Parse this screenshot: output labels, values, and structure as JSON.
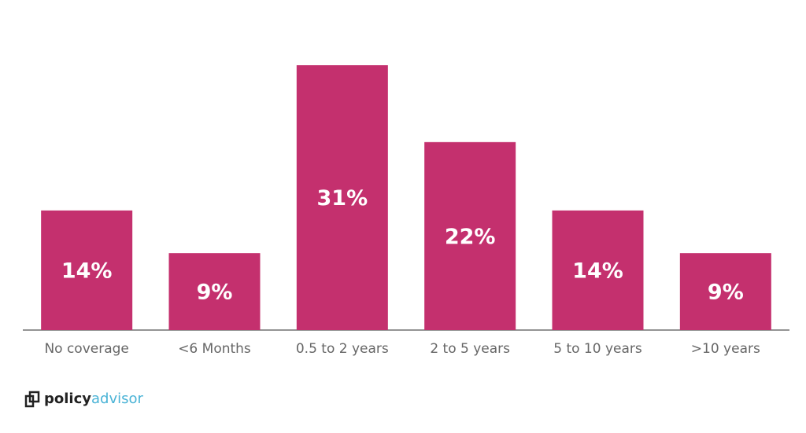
{
  "chart_data": {
    "type": "bar",
    "categories": [
      "No coverage",
      "<6 Months",
      "0.5 to 2 years",
      "2 to 5 years",
      "5 to 10 years",
      ">10 years"
    ],
    "values": [
      14,
      9,
      31,
      22,
      14,
      9
    ],
    "value_labels": [
      "14%",
      "9%",
      "31%",
      "22%",
      "14%",
      "9%"
    ],
    "color": "#c4306e"
  },
  "brand": {
    "name_first": "policy",
    "name_second": "advisor"
  }
}
